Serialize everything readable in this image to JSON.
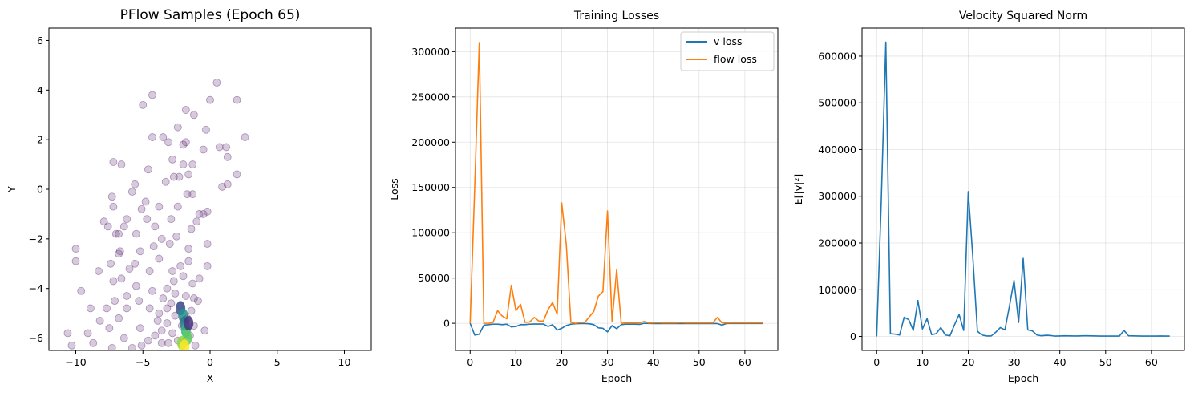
{
  "chart_data": [
    {
      "type": "scatter",
      "title": "PFlow Samples (Epoch 65)",
      "xlabel": "X",
      "ylabel": "Y",
      "xlim": [
        -12,
        12
      ],
      "ylim": [
        -6.5,
        6.5
      ],
      "xticks": [
        -10,
        -5,
        0,
        5,
        10
      ],
      "yticks": [
        -6,
        -4,
        -2,
        0,
        2,
        4,
        6
      ],
      "xtick_labels": [
        "−10",
        "−5",
        "0",
        "5",
        "10"
      ],
      "ytick_labels": [
        "−6",
        "−4",
        "−2",
        "0",
        "2",
        "4",
        "6"
      ],
      "grid": false,
      "colormap": "viridis",
      "marker_color": "#5b2a73",
      "points": [
        [
          0.5,
          4.3
        ],
        [
          -4.3,
          3.8
        ],
        [
          -5,
          3.4
        ],
        [
          0,
          3.6
        ],
        [
          2,
          3.6
        ],
        [
          -1.8,
          3.2
        ],
        [
          -1.2,
          3
        ],
        [
          -2.4,
          2.5
        ],
        [
          -0.3,
          2.4
        ],
        [
          -3.5,
          2.1
        ],
        [
          -4.3,
          2.1
        ],
        [
          -3.1,
          1.9
        ],
        [
          -1.8,
          1.9
        ],
        [
          2.6,
          2.1
        ],
        [
          -2,
          1.8
        ],
        [
          0.7,
          1.7
        ],
        [
          1.2,
          1.7
        ],
        [
          -0.5,
          1.6
        ],
        [
          1.3,
          1.3
        ],
        [
          -2.8,
          1.2
        ],
        [
          -7.2,
          1.1
        ],
        [
          -6.6,
          1
        ],
        [
          -2,
          1
        ],
        [
          -1.3,
          1
        ],
        [
          -4.6,
          0.8
        ],
        [
          -1.6,
          0.6
        ],
        [
          -2.7,
          0.5
        ],
        [
          -2.3,
          0.5
        ],
        [
          2,
          0.6
        ],
        [
          -5.6,
          0.2
        ],
        [
          -3.3,
          0.3
        ],
        [
          1.3,
          0.2
        ],
        [
          0.9,
          0.1
        ],
        [
          -7.3,
          -0.3
        ],
        [
          -5.8,
          -0.1
        ],
        [
          -1.7,
          -0.2
        ],
        [
          -1.3,
          -0.2
        ],
        [
          -7.2,
          -0.7
        ],
        [
          -4.8,
          -0.5
        ],
        [
          -5.1,
          -0.8
        ],
        [
          -3.8,
          -0.7
        ],
        [
          -2.4,
          -0.7
        ],
        [
          -0.2,
          -0.9
        ],
        [
          -0.8,
          -1
        ],
        [
          -0.5,
          -1
        ],
        [
          -6.2,
          -1.2
        ],
        [
          -4.7,
          -1.2
        ],
        [
          -1,
          -1.3
        ],
        [
          -7.9,
          -1.3
        ],
        [
          -7.6,
          -1.5
        ],
        [
          -6.4,
          -1.5
        ],
        [
          -2.9,
          -1.2
        ],
        [
          -4.1,
          -1.5
        ],
        [
          -1.4,
          -1.6
        ],
        [
          -6.8,
          -1.8
        ],
        [
          -5.5,
          -1.8
        ],
        [
          -2.5,
          -1.9
        ],
        [
          -7,
          -1.8
        ],
        [
          -3.6,
          -2
        ],
        [
          -10,
          -2.4
        ],
        [
          -4.2,
          -2.3
        ],
        [
          -1.6,
          -2.4
        ],
        [
          -0.2,
          -2.2
        ],
        [
          -6.7,
          -2.5
        ],
        [
          -5.2,
          -2.5
        ],
        [
          -3,
          -2.2
        ],
        [
          -7.4,
          -3
        ],
        [
          -6.8,
          -2.6
        ],
        [
          -10,
          -2.9
        ],
        [
          -5.6,
          -3
        ],
        [
          -3.8,
          -2.8
        ],
        [
          -0.2,
          -3.1
        ],
        [
          -8.3,
          -3.3
        ],
        [
          -6,
          -3.2
        ],
        [
          -4.5,
          -3.3
        ],
        [
          -6.6,
          -3.6
        ],
        [
          -2.8,
          -3.3
        ],
        [
          -7.2,
          -3.7
        ],
        [
          -0.8,
          -3.6
        ],
        [
          -5.5,
          -3.9
        ],
        [
          -9.6,
          -4.1
        ],
        [
          -6.2,
          -4.3
        ],
        [
          -4.3,
          -4.1
        ],
        [
          -7.1,
          -4.5
        ],
        [
          -5.3,
          -4.5
        ],
        [
          -8.9,
          -4.8
        ],
        [
          -7.7,
          -4.8
        ],
        [
          -6.2,
          -4.8
        ],
        [
          -4.5,
          -4.8
        ],
        [
          -3.2,
          -4.8
        ],
        [
          -0.9,
          -4.5
        ],
        [
          -8.2,
          -5.3
        ],
        [
          -6.8,
          -5.2
        ],
        [
          -5.2,
          -5.6
        ],
        [
          -3.9,
          -5.3
        ],
        [
          -7.5,
          -5.6
        ],
        [
          -9.1,
          -5.8
        ],
        [
          -6.4,
          -6
        ],
        [
          -4.1,
          -5.9
        ],
        [
          -8.7,
          -6.2
        ],
        [
          -5.1,
          -6.3
        ],
        [
          -10.6,
          -5.8
        ],
        [
          -10.3,
          -6.3
        ],
        [
          -7.3,
          -6.4
        ],
        [
          -5.8,
          -6.4
        ],
        [
          -4.6,
          -6.1
        ],
        [
          -3.6,
          -6.2
        ],
        [
          -0.4,
          -5.7
        ],
        [
          -1.6,
          -2.9
        ],
        [
          -2.2,
          -3.1
        ],
        [
          -2,
          -3.5
        ],
        [
          -2.7,
          -3.7
        ],
        [
          -1.3,
          -3.8
        ],
        [
          -3.2,
          -4
        ],
        [
          -2.6,
          -4.2
        ],
        [
          -1.8,
          -4.3
        ],
        [
          -1.2,
          -4.4
        ],
        [
          -3.5,
          -4.4
        ],
        [
          -2.9,
          -4.6
        ],
        [
          -2.2,
          -4.7
        ],
        [
          -1.4,
          -4.9
        ],
        [
          -3.8,
          -5
        ],
        [
          -2.6,
          -5.1
        ],
        [
          -1.7,
          -5.2
        ],
        [
          -3.2,
          -5.4
        ],
        [
          -2.1,
          -5.5
        ],
        [
          -1.2,
          -5.5
        ],
        [
          -3.6,
          -5.7
        ],
        [
          -2.8,
          -5.8
        ],
        [
          -1.5,
          -5.9
        ],
        [
          -2.4,
          -6.1
        ],
        [
          -3.1,
          -6.2
        ],
        [
          -1.1,
          -6.3
        ]
      ],
      "density_core": {
        "x": [
          -2.2,
          -2,
          -1.9,
          -1.8,
          -1.7,
          -2.1,
          -1.6,
          -1.9
        ],
        "y": [
          -4.8,
          -5.1,
          -5.4,
          -5.7,
          -6,
          -6.2,
          -5.4,
          -6.35
        ]
      }
    },
    {
      "type": "line",
      "title": "Training Losses",
      "xlabel": "Epoch",
      "ylabel": "Loss",
      "xlim": [
        -3.2,
        67.2
      ],
      "ylim": [
        -30000,
        326000
      ],
      "xticks": [
        0,
        10,
        20,
        30,
        40,
        50,
        60
      ],
      "yticks": [
        0,
        50000,
        100000,
        150000,
        200000,
        250000,
        300000
      ],
      "grid": true,
      "legend": "top-right",
      "series": [
        {
          "name": "v loss",
          "color": "#1f77b4",
          "values": [
            0,
            -13000,
            -12000,
            -2000,
            -1500,
            -1000,
            -1000,
            -1500,
            -1000,
            -4000,
            -3500,
            -1500,
            -1500,
            -1000,
            -800,
            -800,
            -800,
            -3500,
            -1500,
            -7500,
            -5500,
            -2500,
            -1000,
            -500,
            -300,
            -300,
            -500,
            -1500,
            -5000,
            -5500,
            -9500,
            -2500,
            -6000,
            -1500,
            -1000,
            -1000,
            -1000,
            -1200,
            0,
            -200,
            -300,
            -300,
            -300,
            -300,
            -300,
            -300,
            -300,
            -300,
            -300,
            -300,
            -300,
            -300,
            -300,
            -300,
            -300,
            -2000,
            -200,
            -200,
            -200,
            -200,
            -200,
            -200,
            -200,
            -200,
            -200
          ]
        },
        {
          "name": "flow loss",
          "color": "#ff7f0e",
          "values": [
            0,
            150000,
            310000,
            0,
            0,
            1000,
            14000,
            8000,
            5000,
            42000,
            14000,
            21000,
            1000,
            1500,
            6500,
            2500,
            2500,
            15000,
            23000,
            10000,
            133000,
            87000,
            1000,
            0,
            1000,
            800,
            7000,
            13000,
            30000,
            35000,
            124000,
            2000,
            59000,
            0,
            500,
            500,
            500,
            500,
            2000,
            500,
            500,
            1000,
            500,
            500,
            500,
            500,
            1000,
            500,
            500,
            500,
            500,
            500,
            500,
            500,
            6500,
            500,
            500,
            500,
            500,
            500,
            500,
            500,
            500,
            500,
            500
          ]
        }
      ]
    },
    {
      "type": "line",
      "title": "Velocity Squared Norm",
      "xlabel": "Epoch",
      "ylabel": "E[|v|²]",
      "xlim": [
        -3.2,
        67.2
      ],
      "ylim": [
        -30000,
        660000
      ],
      "xticks": [
        0,
        10,
        20,
        30,
        40,
        50,
        60
      ],
      "yticks": [
        0,
        100000,
        200000,
        300000,
        400000,
        500000,
        600000
      ],
      "grid": true,
      "series": [
        {
          "color": "#1f77b4",
          "values": [
            0,
            290000,
            630000,
            6000,
            5000,
            3000,
            41000,
            36000,
            13000,
            77000,
            16000,
            38000,
            4000,
            6000,
            19000,
            3000,
            1500,
            25000,
            47000,
            13000,
            310000,
            170000,
            11000,
            3000,
            1000,
            1000,
            9000,
            19000,
            14000,
            65000,
            120000,
            30000,
            167000,
            14000,
            12000,
            3000,
            1500,
            2500,
            2000,
            700,
            1000,
            1500,
            1200,
            1000,
            1000,
            1500,
            1500,
            1200,
            1000,
            800,
            700,
            700,
            700,
            700,
            13000,
            1500,
            1200,
            1000,
            800,
            700,
            700,
            800,
            1000,
            800,
            800
          ]
        }
      ]
    }
  ]
}
